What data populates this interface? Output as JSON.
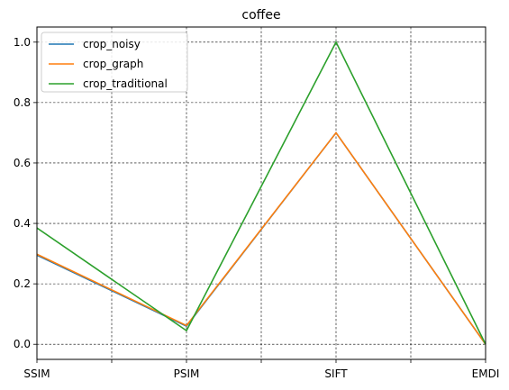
{
  "chart_data": {
    "type": "line",
    "title": "coffee",
    "xlabel": "",
    "ylabel": "",
    "categories": [
      "SSIM",
      "PSIM",
      "SIFT",
      "EMDI"
    ],
    "ylim": [
      -0.05,
      1.05
    ],
    "yticks": [
      "0.0",
      "0.2",
      "0.4",
      "0.6",
      "0.8",
      "1.0"
    ],
    "grid": true,
    "legend_position": "top-left",
    "series": [
      {
        "name": "crop_noisy",
        "color": "#1f77b4",
        "values": [
          0.295,
          0.06,
          0.7,
          0.0
        ]
      },
      {
        "name": "crop_graph",
        "color": "#ff7f0e",
        "values": [
          0.298,
          0.062,
          0.7,
          0.0
        ]
      },
      {
        "name": "crop_traditional",
        "color": "#2ca02c",
        "values": [
          0.385,
          0.045,
          1.0,
          0.0
        ]
      }
    ]
  }
}
